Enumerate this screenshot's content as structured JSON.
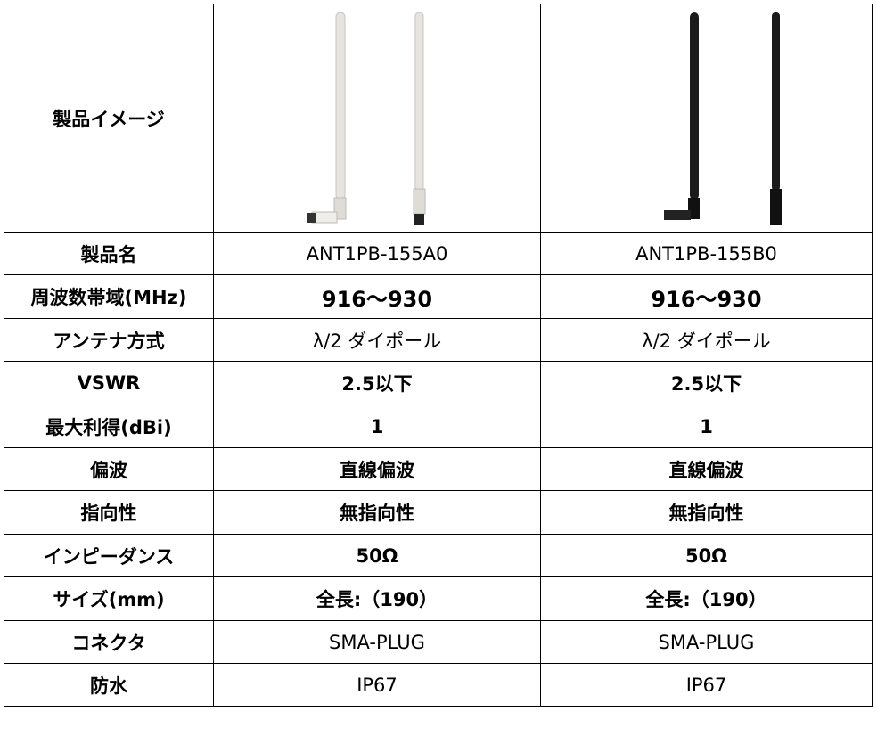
{
  "table": {
    "image_row": {
      "label": "製品イメージ"
    },
    "rows": [
      [
        "製品名",
        "ANT1PB-155A0",
        "ANT1PB-155B0"
      ],
      [
        "周波数帯域(MHz)",
        "916～930",
        "916～930"
      ],
      [
        "アンテナ方式",
        "λ/2 ダイポール",
        "λ/2 ダイポール"
      ],
      [
        "VSWR",
        "2.5以下",
        "2.5以下"
      ],
      [
        "最大利得(dBi)",
        "1",
        "1"
      ],
      [
        "偏波",
        "直線偏波",
        "直線偏波"
      ],
      [
        "指向性",
        "無指向性",
        "無指向性"
      ],
      [
        "インピーダンス",
        "50Ω",
        "50Ω"
      ],
      [
        "サイズ(mm)",
        "全長:（190）",
        "全長:（190）"
      ],
      [
        "コネクタ",
        "SMA-PLUG",
        "SMA-PLUG"
      ],
      [
        "防水",
        "IP67",
        "IP67"
      ]
    ]
  }
}
